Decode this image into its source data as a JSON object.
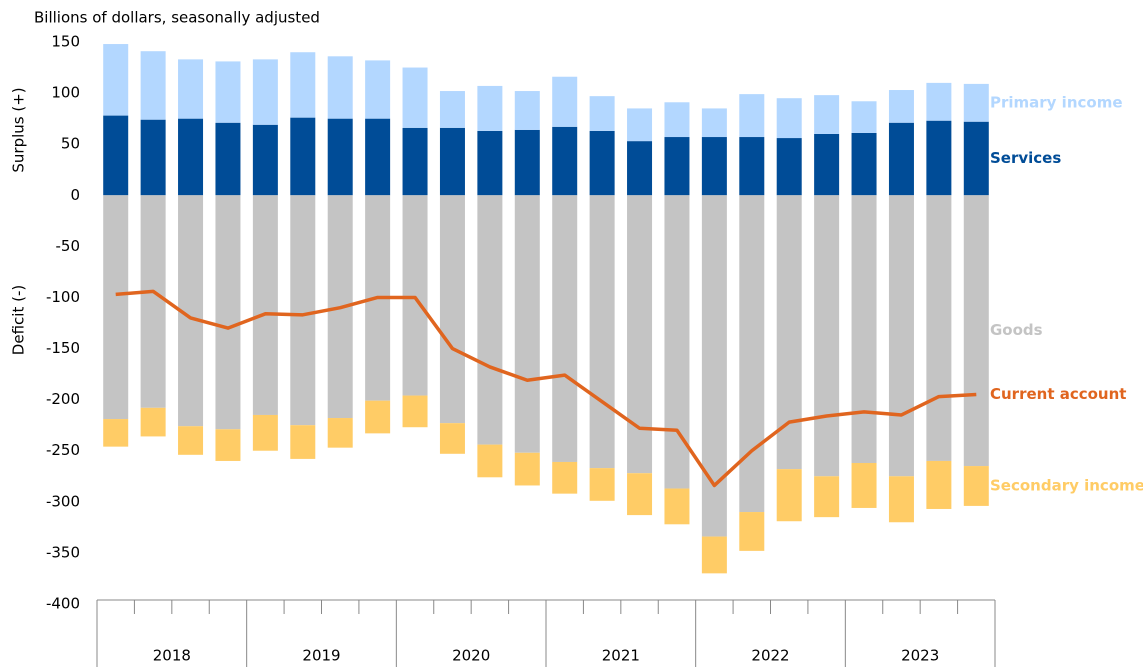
{
  "chart_data": {
    "type": "bar",
    "subtitle": "Billions of dollars, seasonally adjusted",
    "y_label_top": "Surplus (+)",
    "y_label_bottom": "Deficit (-)",
    "categories": [
      null,
      null,
      null,
      null,
      null,
      null,
      null,
      null,
      null,
      null,
      null,
      null,
      null,
      null,
      null,
      null,
      null,
      null,
      null,
      null,
      null,
      null,
      null,
      null
    ],
    "groups": [
      "2018",
      "2019",
      "2020",
      "2021",
      "2022",
      "2023"
    ],
    "ylim": [
      -400,
      150
    ],
    "yticks": [
      150,
      100,
      50,
      0,
      -50,
      -100,
      -150,
      -200,
      -250,
      -300,
      -350,
      -400
    ],
    "series": [
      {
        "name": "Services",
        "color": "#004c97",
        "values": [
          78,
          74,
          75,
          71,
          69,
          76,
          75,
          75,
          66,
          66,
          63,
          64,
          67,
          63,
          53,
          57,
          57,
          57,
          56,
          60,
          61,
          71,
          73,
          72
        ]
      },
      {
        "name": "Primary income",
        "color": "#b3d7ff",
        "values": [
          70,
          67,
          58,
          60,
          64,
          64,
          61,
          57,
          59,
          36,
          44,
          38,
          49,
          34,
          32,
          34,
          28,
          42,
          39,
          38,
          31,
          32,
          37,
          37
        ]
      },
      {
        "name": "Goods",
        "color": "#c4c4c4",
        "values": [
          -219,
          -208,
          -226,
          -229,
          -215,
          -225,
          -218,
          -201,
          -196,
          -223,
          -244,
          -252,
          -261,
          -267,
          -272,
          -287,
          -334,
          -310,
          -268,
          -275,
          -262,
          -275,
          -260,
          -265
        ]
      },
      {
        "name": "Secondary income",
        "color": "#ffcc66",
        "values": [
          -27,
          -28,
          -28,
          -31,
          -35,
          -33,
          -29,
          -32,
          -31,
          -30,
          -32,
          -32,
          -31,
          -32,
          -41,
          -35,
          -36,
          -38,
          -51,
          -40,
          -44,
          -45,
          -47,
          -39
        ]
      },
      {
        "name": "Current account",
        "color": "#e0651f",
        "type": "line",
        "values": [
          -97,
          -94,
          -120,
          -130,
          -116,
          -117,
          -110,
          -100,
          -100,
          -150,
          -168,
          -181,
          -176,
          -202,
          -228,
          -230,
          -284,
          -250,
          -222,
          -216,
          -212,
          -215,
          -197,
          -195
        ]
      }
    ]
  }
}
